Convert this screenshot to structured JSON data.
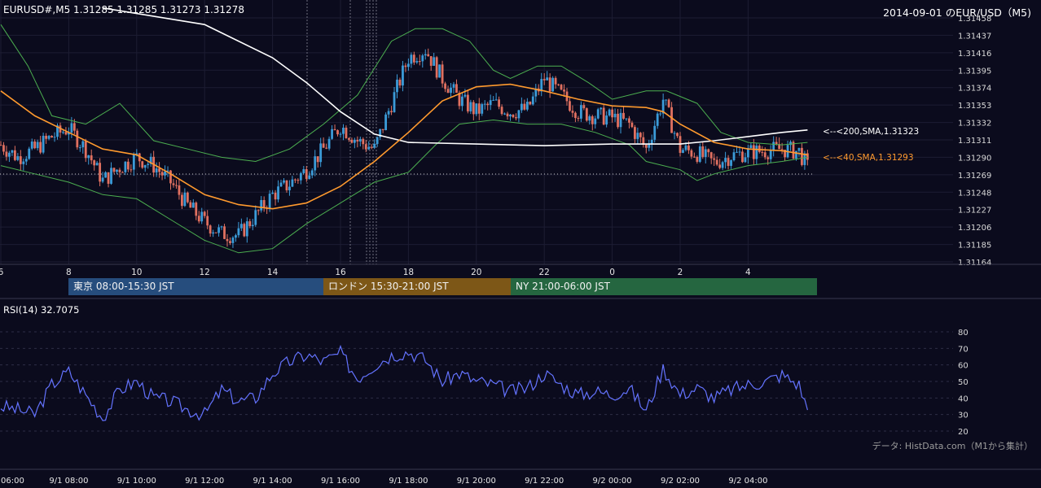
{
  "header": {
    "symbol_info": "EURUSD#,M5 1.31285 1.31285 1.31273 1.31278",
    "title_right": "2014-09-01 のEUR/USD（M5)"
  },
  "price_axis": {
    "ticks": [
      "1.31458",
      "1.31437",
      "1.31416",
      "1.31395",
      "1.31374",
      "1.31353",
      "1.31332",
      "1.31311",
      "1.31290",
      "1.31269",
      "1.31248",
      "1.31227",
      "1.31206",
      "1.31185",
      "1.31164"
    ],
    "min": 1.31164,
    "max": 1.31458
  },
  "hour_axis": {
    "ticks": [
      "6",
      "8",
      "10",
      "12",
      "14",
      "16",
      "18",
      "20",
      "22",
      "0",
      "2",
      "4"
    ]
  },
  "date_axis": {
    "ticks": [
      "06:00",
      "9/1 08:00",
      "9/1 10:00",
      "9/1 12:00",
      "9/1 14:00",
      "9/1 16:00",
      "9/1 18:00",
      "9/1 20:00",
      "9/1 22:00",
      "9/2 00:00",
      "9/2 02:00",
      "9/2 04:00"
    ]
  },
  "annotations": {
    "sma200": "<--<200,SMA,1.31323",
    "sma40": "<--<40,SMA,1.31293"
  },
  "sessions": [
    {
      "label": "東京 08:00-15:30 JST",
      "color": "#264d7d"
    },
    {
      "label": "ロンドン 15:30-21:00 JST",
      "color": "#7d5717"
    },
    {
      "label": "NY 21:00-06:00 JST",
      "color": "#256640"
    }
  ],
  "rsi": {
    "label": "RSI(14) 32.7075",
    "ticks": [
      "80",
      "70",
      "60",
      "50",
      "40",
      "30",
      "20"
    ],
    "line_color": "#6473ff"
  },
  "credit": "データ: HistData.com（M1から集計）",
  "colors": {
    "background": "#0b0b1d",
    "candle_up": "#3b9bd8",
    "candle_down": "#e07060",
    "sma40": "#ff9a2e",
    "sma200": "#ffffff",
    "bollinger": "#4caf50"
  },
  "chart_data": [
    {
      "type": "candlestick",
      "title": "EURUSD#,M5",
      "x_hours": [
        6,
        8,
        10,
        12,
        14,
        16,
        18,
        20,
        22,
        0,
        2,
        4
      ],
      "ylim": [
        1.31164,
        1.31458
      ],
      "close_path": [
        [
          6.0,
          1.31305
        ],
        [
          6.5,
          1.3129
        ],
        [
          7.0,
          1.313
        ],
        [
          7.5,
          1.31315
        ],
        [
          8.0,
          1.31325
        ],
        [
          8.5,
          1.313
        ],
        [
          9.0,
          1.31262
        ],
        [
          9.5,
          1.31278
        ],
        [
          10.0,
          1.3129
        ],
        [
          10.5,
          1.3128
        ],
        [
          11.0,
          1.3126
        ],
        [
          11.5,
          1.31232
        ],
        [
          12.0,
          1.31212
        ],
        [
          12.5,
          1.31198
        ],
        [
          13.0,
          1.31196
        ],
        [
          13.5,
          1.3122
        ],
        [
          14.0,
          1.31245
        ],
        [
          14.5,
          1.31258
        ],
        [
          15.0,
          1.31275
        ],
        [
          15.5,
          1.313
        ],
        [
          16.0,
          1.31328
        ],
        [
          16.5,
          1.3131
        ],
        [
          17.0,
          1.313
        ],
        [
          17.5,
          1.31355
        ],
        [
          18.0,
          1.3141
        ],
        [
          18.5,
          1.3142
        ],
        [
          19.0,
          1.31385
        ],
        [
          19.5,
          1.3136
        ],
        [
          20.0,
          1.31345
        ],
        [
          20.5,
          1.31355
        ],
        [
          21.0,
          1.31345
        ],
        [
          21.5,
          1.31348
        ],
        [
          22.0,
          1.31385
        ],
        [
          22.5,
          1.31365
        ],
        [
          23.0,
          1.31345
        ],
        [
          23.5,
          1.3134
        ],
        [
          24.0,
          1.31338
        ],
        [
          24.5,
          1.3133
        ],
        [
          25.0,
          1.313
        ],
        [
          25.5,
          1.3136
        ],
        [
          26.0,
          1.313
        ],
        [
          26.5,
          1.31295
        ],
        [
          27.0,
          1.31283
        ],
        [
          27.5,
          1.31292
        ],
        [
          28.0,
          1.31296
        ],
        [
          28.5,
          1.31298
        ],
        [
          29.0,
          1.313
        ],
        [
          29.5,
          1.31297
        ],
        [
          29.75,
          1.31278
        ]
      ],
      "sma40_path": [
        [
          6.0,
          1.3137
        ],
        [
          7.0,
          1.3134
        ],
        [
          8.0,
          1.3132
        ],
        [
          9.0,
          1.313
        ],
        [
          10.0,
          1.31293
        ],
        [
          11.0,
          1.3127
        ],
        [
          12.0,
          1.31245
        ],
        [
          13.0,
          1.31233
        ],
        [
          14.0,
          1.31228
        ],
        [
          15.0,
          1.31235
        ],
        [
          16.0,
          1.31255
        ],
        [
          17.0,
          1.31285
        ],
        [
          18.0,
          1.3132
        ],
        [
          19.0,
          1.31358
        ],
        [
          20.0,
          1.31375
        ],
        [
          21.0,
          1.31378
        ],
        [
          22.0,
          1.3137
        ],
        [
          23.0,
          1.3136
        ],
        [
          24.0,
          1.31352
        ],
        [
          25.0,
          1.3135
        ],
        [
          25.5,
          1.31345
        ],
        [
          26.0,
          1.3133
        ],
        [
          27.0,
          1.31308
        ],
        [
          28.0,
          1.313
        ],
        [
          29.0,
          1.31298
        ],
        [
          29.75,
          1.31293
        ]
      ],
      "sma200_path": [
        [
          9.0,
          1.3147
        ],
        [
          12.0,
          1.3145
        ],
        [
          14.0,
          1.3141
        ],
        [
          15.0,
          1.3138
        ],
        [
          16.0,
          1.31345
        ],
        [
          17.0,
          1.31318
        ],
        [
          18.0,
          1.31308
        ],
        [
          20.0,
          1.31306
        ],
        [
          22.0,
          1.31304
        ],
        [
          24.0,
          1.31306
        ],
        [
          26.0,
          1.31306
        ],
        [
          27.0,
          1.3131
        ],
        [
          28.0,
          1.31315
        ],
        [
          29.0,
          1.3132
        ],
        [
          29.75,
          1.31323
        ]
      ],
      "bb_upper_path": [
        [
          6.0,
          1.3145
        ],
        [
          6.8,
          1.314
        ],
        [
          7.5,
          1.3134
        ],
        [
          8.5,
          1.3133
        ],
        [
          9.5,
          1.31355
        ],
        [
          10.5,
          1.3131
        ],
        [
          11.5,
          1.313
        ],
        [
          12.5,
          1.3129
        ],
        [
          13.5,
          1.31285
        ],
        [
          14.5,
          1.313
        ],
        [
          15.5,
          1.3133
        ],
        [
          16.5,
          1.31365
        ],
        [
          17.5,
          1.3143
        ],
        [
          18.2,
          1.31445
        ],
        [
          19.0,
          1.31445
        ],
        [
          19.8,
          1.3143
        ],
        [
          20.5,
          1.31395
        ],
        [
          21.0,
          1.31385
        ],
        [
          21.8,
          1.314
        ],
        [
          22.5,
          1.314
        ],
        [
          23.3,
          1.3138
        ],
        [
          24.0,
          1.3136
        ],
        [
          25.0,
          1.3137
        ],
        [
          25.6,
          1.3137
        ],
        [
          26.5,
          1.31355
        ],
        [
          27.2,
          1.3132
        ],
        [
          28.0,
          1.31308
        ],
        [
          29.0,
          1.31305
        ],
        [
          29.75,
          1.31308
        ]
      ],
      "bb_lower_path": [
        [
          6.0,
          1.3128
        ],
        [
          7.0,
          1.3127
        ],
        [
          8.0,
          1.3126
        ],
        [
          9.0,
          1.31245
        ],
        [
          10.0,
          1.3124
        ],
        [
          11.0,
          1.31215
        ],
        [
          12.0,
          1.3119
        ],
        [
          13.0,
          1.31175
        ],
        [
          14.0,
          1.3118
        ],
        [
          15.0,
          1.3121
        ],
        [
          16.0,
          1.31235
        ],
        [
          17.0,
          1.3126
        ],
        [
          18.0,
          1.31272
        ],
        [
          18.8,
          1.31305
        ],
        [
          19.5,
          1.3133
        ],
        [
          20.5,
          1.31335
        ],
        [
          21.5,
          1.3133
        ],
        [
          22.5,
          1.3133
        ],
        [
          23.5,
          1.3132
        ],
        [
          24.5,
          1.31305
        ],
        [
          25.0,
          1.31285
        ],
        [
          26.0,
          1.31275
        ],
        [
          26.5,
          1.31262
        ],
        [
          27.0,
          1.3127
        ],
        [
          28.0,
          1.3128
        ],
        [
          29.0,
          1.31285
        ],
        [
          29.75,
          1.3129
        ]
      ]
    },
    {
      "type": "line",
      "title": "RSI(14) 32.7075",
      "ylim": [
        20,
        80
      ],
      "x_hours": [
        6,
        8,
        10,
        12,
        14,
        16,
        18,
        20,
        22,
        0,
        2,
        4
      ],
      "path": [
        [
          6.0,
          35
        ],
        [
          6.5,
          33
        ],
        [
          7.0,
          30
        ],
        [
          7.5,
          48
        ],
        [
          8.0,
          56
        ],
        [
          8.5,
          42
        ],
        [
          9.0,
          28
        ],
        [
          9.5,
          45
        ],
        [
          10.0,
          50
        ],
        [
          10.5,
          40
        ],
        [
          11.0,
          38
        ],
        [
          11.5,
          33
        ],
        [
          12.0,
          30
        ],
        [
          12.5,
          45
        ],
        [
          13.0,
          38
        ],
        [
          13.5,
          40
        ],
        [
          14.0,
          55
        ],
        [
          14.5,
          62
        ],
        [
          15.0,
          66
        ],
        [
          15.5,
          62
        ],
        [
          16.0,
          67
        ],
        [
          16.5,
          52
        ],
        [
          17.0,
          60
        ],
        [
          17.5,
          66
        ],
        [
          18.0,
          68
        ],
        [
          18.5,
          63
        ],
        [
          19.0,
          50
        ],
        [
          19.5,
          55
        ],
        [
          20.0,
          50
        ],
        [
          20.5,
          48
        ],
        [
          21.0,
          44
        ],
        [
          21.5,
          46
        ],
        [
          22.0,
          55
        ],
        [
          22.5,
          48
        ],
        [
          23.0,
          42
        ],
        [
          23.5,
          44
        ],
        [
          24.0,
          42
        ],
        [
          24.5,
          46
        ],
        [
          25.0,
          32
        ],
        [
          25.5,
          58
        ],
        [
          26.0,
          42
        ],
        [
          26.5,
          46
        ],
        [
          27.0,
          40
        ],
        [
          27.5,
          45
        ],
        [
          28.0,
          48
        ],
        [
          28.5,
          50
        ],
        [
          29.0,
          54
        ],
        [
          29.5,
          48
        ],
        [
          29.75,
          33
        ]
      ]
    }
  ]
}
